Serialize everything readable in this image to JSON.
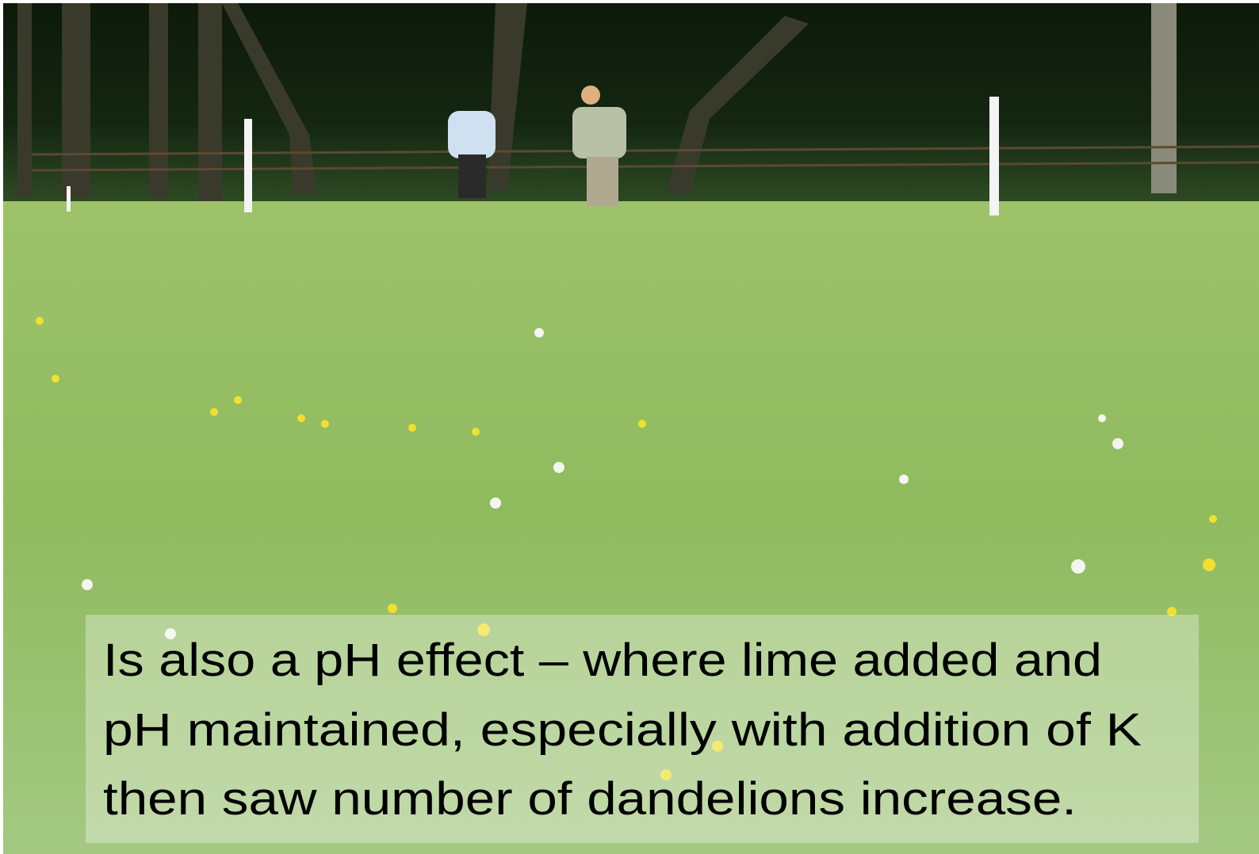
{
  "slide": {
    "lines": [
      "Is also a pH effect – where lime added and",
      "pH maintained, especially with addition of K",
      "then saw number of dandelions increase."
    ]
  }
}
